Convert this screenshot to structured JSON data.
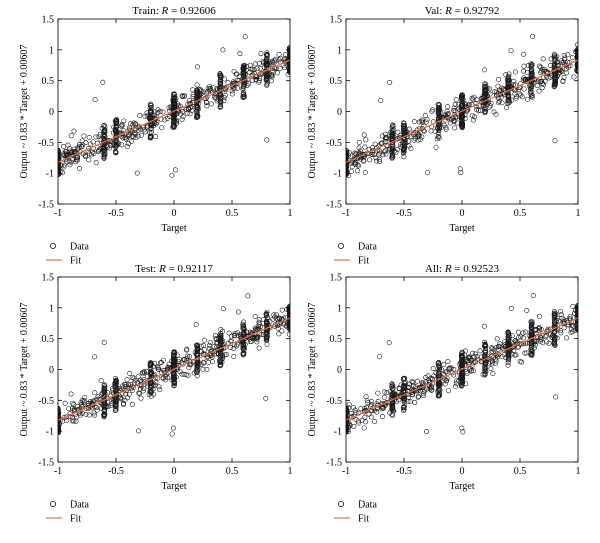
{
  "page": {
    "background": "#ffffff"
  },
  "colors": {
    "data_marker": "#1a1a1a",
    "fit_line": "#e2724a",
    "axes": "#000000"
  },
  "shared": {
    "xlabel": "Target",
    "ylabel": "Output ~ 0.83 * Target + 0.00607",
    "legend": {
      "data_label": "Data",
      "fit_label": "Fit"
    },
    "xticks": [
      "-1",
      "-0.5",
      "0",
      "0.5",
      "1"
    ],
    "yticks": [
      "-1.5",
      "-1",
      "-0.5",
      "0",
      "0.5",
      "1",
      "1.5"
    ]
  },
  "chart_data": [
    {
      "type": "scatter",
      "title_prefix": "Train: ",
      "title_r_symbol": "R",
      "title_value": " = 0.92606",
      "xlim": [
        -1,
        1
      ],
      "ylim": [
        -1.5,
        1.5
      ],
      "x_levels": [
        -1,
        -0.6,
        -0.5,
        -0.2,
        0,
        0.2,
        0.4,
        0.6,
        0.8,
        1
      ],
      "fit": {
        "slope": 0.83,
        "intercept": 0.00607
      },
      "grid": false,
      "legend_position": "below-left",
      "seed": 11
    },
    {
      "type": "scatter",
      "title_prefix": "Val: ",
      "title_r_symbol": "R",
      "title_value": " = 0.92792",
      "xlim": [
        -1,
        1
      ],
      "ylim": [
        -1.5,
        1.5
      ],
      "x_levels": [
        -1,
        -0.6,
        -0.5,
        -0.2,
        0,
        0.2,
        0.4,
        0.6,
        0.8,
        1
      ],
      "fit": {
        "slope": 0.83,
        "intercept": 0.00607
      },
      "grid": false,
      "legend_position": "below-left",
      "seed": 23
    },
    {
      "type": "scatter",
      "title_prefix": "Test: ",
      "title_r_symbol": "R",
      "title_value": " = 0.92117",
      "xlim": [
        -1,
        1
      ],
      "ylim": [
        -1.5,
        1.5
      ],
      "x_levels": [
        -1,
        -0.6,
        -0.5,
        -0.2,
        0,
        0.2,
        0.4,
        0.6,
        0.8,
        1
      ],
      "fit": {
        "slope": 0.83,
        "intercept": 0.00607
      },
      "grid": false,
      "legend_position": "below-left",
      "seed": 37
    },
    {
      "type": "scatter",
      "title_prefix": "All: ",
      "title_r_symbol": "R",
      "title_value": " = 0.92523",
      "xlim": [
        -1,
        1
      ],
      "ylim": [
        -1.5,
        1.5
      ],
      "x_levels": [
        -1,
        -0.6,
        -0.5,
        -0.2,
        0,
        0.2,
        0.4,
        0.6,
        0.8,
        1
      ],
      "fit": {
        "slope": 0.83,
        "intercept": 0.00607
      },
      "grid": false,
      "legend_position": "below-left",
      "seed": 53
    }
  ]
}
